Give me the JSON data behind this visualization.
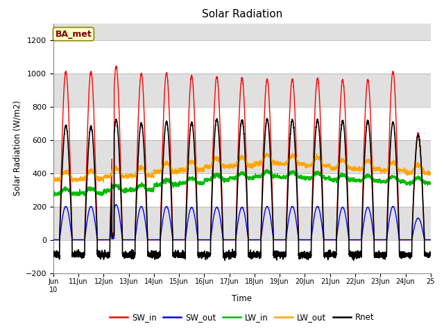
{
  "title": "Solar Radiation",
  "ylabel": "Solar Radiation (W/m2)",
  "xlabel": "Time",
  "ylim": [
    -200,
    1300
  ],
  "yticks": [
    -200,
    0,
    200,
    400,
    600,
    800,
    1000,
    1200
  ],
  "label_text": "BA_met",
  "colors": {
    "SW_in": "#ff0000",
    "SW_out": "#0000ff",
    "LW_in": "#00bb00",
    "LW_out": "#ffa500",
    "Rnet": "#000000"
  },
  "SW_in_peaks": [
    1010,
    1010,
    1040,
    1000,
    1000,
    985,
    980,
    970,
    965,
    965,
    970,
    960,
    960,
    1010,
    640
  ],
  "SW_out_peaks": [
    200,
    200,
    210,
    200,
    200,
    195,
    195,
    195,
    200,
    200,
    200,
    195,
    195,
    200,
    130
  ],
  "LW_in_values": [
    275,
    280,
    295,
    300,
    330,
    340,
    360,
    370,
    380,
    375,
    370,
    360,
    355,
    350,
    340
  ],
  "LW_out_values": [
    360,
    365,
    380,
    385,
    410,
    420,
    440,
    445,
    460,
    455,
    445,
    430,
    425,
    415,
    400
  ],
  "Rnet_peaks": [
    685,
    680,
    720,
    700,
    710,
    705,
    725,
    720,
    725,
    720,
    720,
    715,
    715,
    705,
    630
  ],
  "Rnet_night": -90,
  "days": 15,
  "samples_per_day": 288,
  "figsize": [
    6.4,
    4.8
  ],
  "dpi": 100
}
